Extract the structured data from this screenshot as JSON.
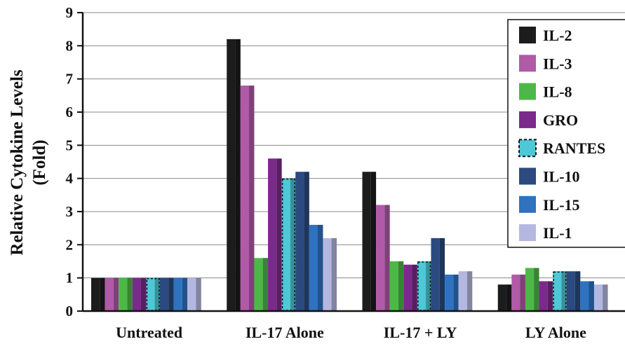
{
  "chart_data": {
    "type": "bar",
    "ylabel": "Relative Cytokine Levels",
    "ylabel_line2": "(Fold)",
    "ylim": [
      0,
      9
    ],
    "yticks": [
      0,
      1,
      2,
      3,
      4,
      5,
      6,
      7,
      8,
      9
    ],
    "grid": true,
    "legend_position": "top-right",
    "categories": [
      "Untreated",
      "IL-17 Alone",
      "IL-17 + LY",
      "LY Alone"
    ],
    "series": [
      {
        "name": "IL-2",
        "color": "#1c1c1c",
        "values": [
          1.0,
          8.2,
          4.2,
          0.8
        ]
      },
      {
        "name": "IL-3",
        "color": "#b05aa8",
        "values": [
          1.0,
          6.8,
          3.2,
          1.1
        ]
      },
      {
        "name": "IL-8",
        "color": "#4db848",
        "values": [
          1.0,
          1.6,
          1.5,
          1.3
        ]
      },
      {
        "name": "GRO",
        "color": "#7a2a8a",
        "values": [
          1.0,
          4.6,
          1.4,
          0.9
        ]
      },
      {
        "name": "RANTES",
        "color": "#4ec8d6",
        "values": [
          1.0,
          4.0,
          1.5,
          1.2
        ],
        "dashed": true
      },
      {
        "name": "IL-10",
        "color": "#2a4a80",
        "values": [
          1.0,
          4.2,
          2.2,
          1.2
        ]
      },
      {
        "name": "IL-15",
        "color": "#2e72c0",
        "values": [
          1.0,
          2.6,
          1.1,
          0.9
        ]
      },
      {
        "name": "IL-1",
        "color": "#b4b8e0",
        "values": [
          1.0,
          2.2,
          1.2,
          0.8
        ]
      }
    ]
  }
}
